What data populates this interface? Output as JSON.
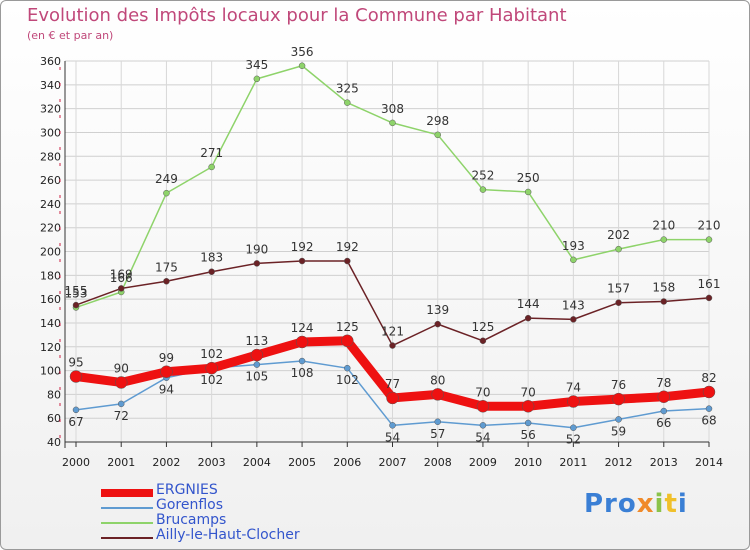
{
  "header": {
    "title": "Evolution des Impôts locaux pour la Commune par Habitant",
    "subtitle": "(en € et par an)"
  },
  "logo": {
    "text_a": "Pro",
    "text_b": "x",
    "text_c": "i",
    "text_d": "t",
    "text_e": "i"
  },
  "colors": {
    "title": "#c0487a",
    "ERGNIES": "#ee1111",
    "Gorenflos": "#5f9bd1",
    "Brucamps": "#8ed36a",
    "Ailly-le-Haut-Clocher": "#6b2226"
  },
  "chart_data": {
    "type": "line",
    "title": "Evolution des Impôts locaux pour la Commune par Habitant",
    "subtitle": "(en € et par an)",
    "x": [
      "2000",
      "2001",
      "2002",
      "2003",
      "2004",
      "2005",
      "2006",
      "2007",
      "2008",
      "2009",
      "2010",
      "2011",
      "2012",
      "2013",
      "2014"
    ],
    "ylim": [
      40,
      360
    ],
    "yticks": [
      "40",
      "60",
      "80",
      "100",
      "120",
      "140",
      "160",
      "180",
      "200",
      "220",
      "240",
      "260",
      "280",
      "300",
      "320",
      "340",
      "360"
    ],
    "grid": true,
    "legend_position": "bottom-left",
    "series": [
      {
        "name": "ERGNIES",
        "values": [
          95,
          90,
          99,
          102,
          113,
          124,
          125,
          77,
          80,
          70,
          70,
          74,
          76,
          78,
          82
        ]
      },
      {
        "name": "Gorenflos",
        "values": [
          67,
          72,
          94,
          102,
          105,
          108,
          102,
          54,
          57,
          54,
          56,
          52,
          59,
          66,
          68
        ]
      },
      {
        "name": "Brucamps",
        "values": [
          153,
          166,
          249,
          271,
          345,
          356,
          325,
          308,
          298,
          252,
          250,
          193,
          202,
          210,
          210
        ]
      },
      {
        "name": "Ailly-le-Haut-Clocher",
        "values": [
          155,
          169,
          175,
          183,
          190,
          192,
          192,
          121,
          139,
          125,
          144,
          143,
          157,
          158,
          161
        ]
      }
    ],
    "data_labels": {
      "ERGNIES": [
        "95",
        "90",
        "99",
        "102",
        "113",
        "124",
        "125",
        "77",
        "80",
        "70",
        "70",
        "74",
        "76",
        "78",
        "82"
      ],
      "Gorenflos": [
        "67",
        "72",
        "94",
        "102",
        "105",
        "108",
        "102",
        "54",
        "57",
        "54",
        "56",
        "52",
        "59",
        "66",
        "68"
      ],
      "Brucamps": [
        "153",
        "166",
        "249",
        "271",
        "345",
        "356",
        "325",
        "308",
        "298",
        "252",
        "250",
        "193",
        "202",
        "210",
        "210"
      ],
      "Ailly-le-Haut-Clocher": [
        "155",
        "169",
        "175",
        "183",
        "190",
        "192",
        "192",
        "121",
        "139",
        "125",
        "144",
        "143",
        "157",
        "158",
        "161"
      ]
    }
  }
}
